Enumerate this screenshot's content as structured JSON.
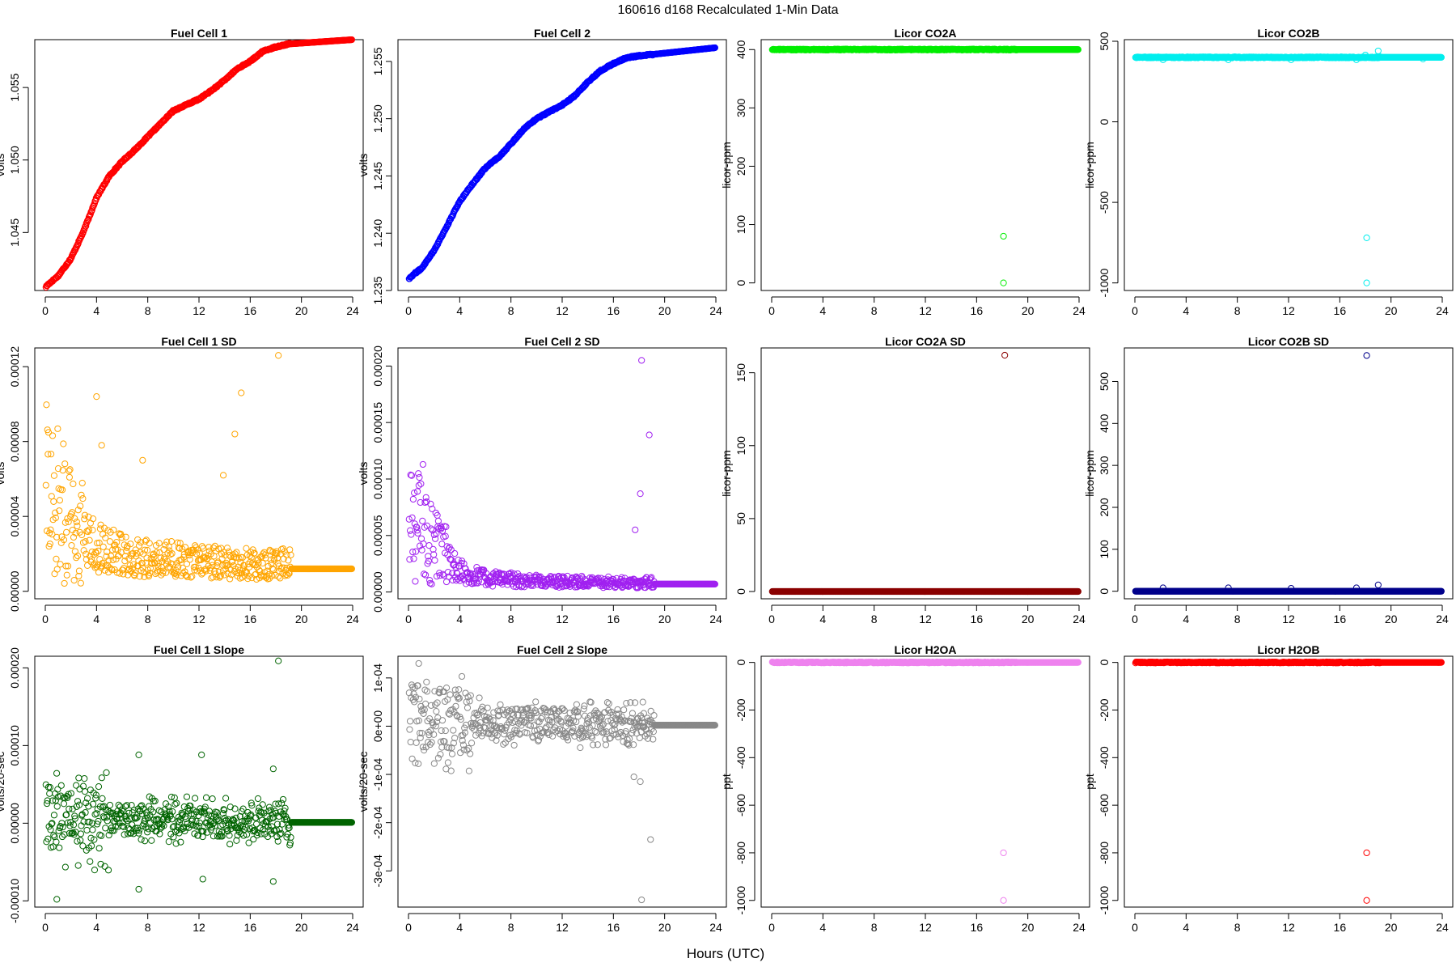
{
  "figure": {
    "title": "160616   d168   Recalculated 1-Min Data",
    "xlabel": "Hours (UTC)"
  },
  "chart_data": [
    {
      "type": "scatter",
      "title": "Fuel Cell 1",
      "xlabel": "",
      "ylabel": "volts",
      "color": "#ff0000",
      "xlim": [
        0,
        24
      ],
      "ylim": [
        1.041,
        1.0583
      ],
      "x_ticks": [
        0,
        4,
        8,
        12,
        16,
        20,
        24
      ],
      "y_ticks": [
        {
          "value": 1.045,
          "label": "1.045"
        },
        {
          "value": 1.05,
          "label": "1.050"
        },
        {
          "value": 1.055,
          "label": "1.055"
        }
      ],
      "trend": [
        [
          0,
          1.0412
        ],
        [
          0.2,
          1.0414
        ],
        [
          1,
          1.042
        ],
        [
          2,
          1.0432
        ],
        [
          3,
          1.0451
        ],
        [
          4,
          1.0474
        ],
        [
          5,
          1.0489
        ],
        [
          6,
          1.0499
        ],
        [
          7,
          1.0507
        ],
        [
          8,
          1.0516
        ],
        [
          9,
          1.0525
        ],
        [
          10,
          1.0534
        ],
        [
          11,
          1.0538
        ],
        [
          12,
          1.0542
        ],
        [
          13,
          1.0548
        ],
        [
          14,
          1.0555
        ],
        [
          15,
          1.0563
        ],
        [
          16,
          1.0568
        ],
        [
          17,
          1.0575
        ],
        [
          18,
          1.0578
        ],
        [
          19,
          1.058
        ],
        [
          24,
          1.0583
        ]
      ],
      "flat_from": 19.2,
      "outliers": []
    },
    {
      "type": "scatter",
      "title": "Fuel Cell 2",
      "xlabel": "",
      "ylabel": "volts",
      "color": "#0000ff",
      "xlim": [
        0,
        24
      ],
      "ylim": [
        1.235,
        1.2569
      ],
      "x_ticks": [
        0,
        4,
        8,
        12,
        16,
        20,
        24
      ],
      "y_ticks": [
        {
          "value": 1.235,
          "label": "1.235"
        },
        {
          "value": 1.24,
          "label": "1.240"
        },
        {
          "value": 1.245,
          "label": "1.245"
        },
        {
          "value": 1.25,
          "label": "1.250"
        },
        {
          "value": 1.255,
          "label": "1.255"
        }
      ],
      "trend": [
        [
          0,
          1.236
        ],
        [
          0.5,
          1.2365
        ],
        [
          1,
          1.2369
        ],
        [
          2,
          1.2385
        ],
        [
          3,
          1.2406
        ],
        [
          4,
          1.2428
        ],
        [
          5,
          1.2443
        ],
        [
          6,
          1.2457
        ],
        [
          7,
          1.2466
        ],
        [
          8,
          1.2478
        ],
        [
          9,
          1.2491
        ],
        [
          10,
          1.25
        ],
        [
          11,
          1.2506
        ],
        [
          12,
          1.2512
        ],
        [
          13,
          1.252
        ],
        [
          14,
          1.2532
        ],
        [
          15,
          1.2542
        ],
        [
          16,
          1.2548
        ],
        [
          17,
          1.2553
        ],
        [
          18,
          1.2555
        ],
        [
          19,
          1.2556
        ],
        [
          24,
          1.2562
        ]
      ],
      "flat_from": 19.2,
      "outliers": []
    },
    {
      "type": "scatter",
      "title": "Licor CO2A",
      "xlabel": "",
      "ylabel": "licor-ppm",
      "color": "#00ee00",
      "xlim": [
        0,
        24
      ],
      "ylim": [
        -13,
        417
      ],
      "x_ticks": [
        0,
        4,
        8,
        12,
        16,
        20,
        24
      ],
      "y_ticks": [
        {
          "value": 0,
          "label": "0"
        },
        {
          "value": 100,
          "label": "100"
        },
        {
          "value": 200,
          "label": "200"
        },
        {
          "value": 300,
          "label": "300"
        },
        {
          "value": 400,
          "label": "400"
        }
      ],
      "trend": [
        [
          0,
          400
        ],
        [
          24,
          400
        ]
      ],
      "flat_from": 19.2,
      "outliers": [
        [
          18.1,
          80
        ],
        [
          18.1,
          0
        ]
      ]
    },
    {
      "type": "scatter",
      "title": "Licor CO2B",
      "xlabel": "",
      "ylabel": "licor-ppm",
      "color": "#00eeee",
      "xlim": [
        0,
        24
      ],
      "ylim": [
        -1047,
        510
      ],
      "x_ticks": [
        0,
        4,
        8,
        12,
        16,
        20,
        24
      ],
      "y_ticks": [
        {
          "value": -1000,
          "label": "-1000"
        },
        {
          "value": -500,
          "label": "-500"
        },
        {
          "value": 0,
          "label": "0"
        },
        {
          "value": 500,
          "label": "500"
        }
      ],
      "trend": [
        [
          0,
          400
        ],
        [
          24,
          400
        ]
      ],
      "flat_from": 19.2,
      "outliers": [
        [
          2.2,
          385
        ],
        [
          7.3,
          385
        ],
        [
          12.2,
          385
        ],
        [
          17.3,
          385
        ],
        [
          18.0,
          415
        ],
        [
          19.0,
          440
        ],
        [
          22.5,
          390
        ],
        [
          18.1,
          -720
        ],
        [
          18.1,
          -1000
        ]
      ]
    },
    {
      "type": "scatter",
      "title": "Fuel Cell 1 SD",
      "xlabel": "",
      "ylabel": "volts",
      "color": "#ffa500",
      "xlim": [
        0,
        24
      ],
      "ylim": [
        -4e-06,
        0.00013
      ],
      "x_ticks": [
        0,
        4,
        8,
        12,
        16,
        20,
        24
      ],
      "y_ticks": [
        {
          "value": 0,
          "label": "0.00000"
        },
        {
          "value": 4e-05,
          "label": "0.00004"
        },
        {
          "value": 8e-05,
          "label": "0.00008"
        },
        {
          "value": 0.00012,
          "label": "0.00012"
        }
      ],
      "trend": [
        [
          0,
          4e-05
        ],
        [
          1,
          3.5e-05
        ],
        [
          2,
          2.5e-05
        ],
        [
          4,
          2e-05
        ],
        [
          6,
          1.6e-05
        ],
        [
          8,
          1.5e-05
        ],
        [
          12,
          1.3e-05
        ],
        [
          16,
          1.2e-05
        ],
        [
          19,
          1.2e-05
        ]
      ],
      "flat_from": 19.2,
      "outliers": [
        [
          4,
          0.000104
        ],
        [
          4.4,
          7.8e-05
        ],
        [
          7.6,
          7e-05
        ],
        [
          13.9,
          6.2e-05
        ],
        [
          14.8,
          8.4e-05
        ],
        [
          15.3,
          0.000106
        ],
        [
          18.2,
          0.000126
        ]
      ]
    },
    {
      "type": "scatter",
      "title": "Fuel Cell 2 SD",
      "xlabel": "",
      "ylabel": "volts",
      "color": "#a020f0",
      "xlim": [
        0,
        24
      ],
      "ylim": [
        -6e-06,
        0.000216
      ],
      "x_ticks": [
        0,
        4,
        8,
        12,
        16,
        20,
        24
      ],
      "y_ticks": [
        {
          "value": 0,
          "label": "0.00000"
        },
        {
          "value": 5e-05,
          "label": "0.00005"
        },
        {
          "value": 0.0001,
          "label": "0.00010"
        },
        {
          "value": 0.00015,
          "label": "0.00015"
        },
        {
          "value": 0.0002,
          "label": "0.00020"
        }
      ],
      "trend": [
        [
          0,
          4e-05
        ],
        [
          1,
          4.5e-05
        ],
        [
          2,
          3e-05
        ],
        [
          4,
          1.5e-05
        ],
        [
          6,
          1e-05
        ],
        [
          10,
          8e-06
        ],
        [
          16,
          7e-06
        ],
        [
          19,
          7e-06
        ]
      ],
      "flat_from": 19.2,
      "outliers": [
        [
          0.7,
          8.9e-05
        ],
        [
          17.7,
          5.5e-05
        ],
        [
          18.1,
          8.7e-05
        ],
        [
          18.2,
          0.000205
        ],
        [
          18.8,
          0.000139
        ]
      ]
    },
    {
      "type": "scatter",
      "title": "Licor CO2A SD",
      "xlabel": "",
      "ylabel": "licor-ppm",
      "color": "#8b0000",
      "xlim": [
        0,
        24
      ],
      "ylim": [
        -5,
        167
      ],
      "x_ticks": [
        0,
        4,
        8,
        12,
        16,
        20,
        24
      ],
      "y_ticks": [
        {
          "value": 0,
          "label": "0"
        },
        {
          "value": 50,
          "label": "50"
        },
        {
          "value": 100,
          "label": "100"
        },
        {
          "value": 150,
          "label": "150"
        }
      ],
      "trend": [
        [
          0,
          0
        ],
        [
          24,
          0
        ]
      ],
      "flat_from": 19.2,
      "outliers": [
        [
          18.2,
          162
        ]
      ]
    },
    {
      "type": "scatter",
      "title": "Licor CO2B SD",
      "xlabel": "",
      "ylabel": "licor-ppm",
      "color": "#00008b",
      "xlim": [
        0,
        24
      ],
      "ylim": [
        -18,
        580
      ],
      "x_ticks": [
        0,
        4,
        8,
        12,
        16,
        20,
        24
      ],
      "y_ticks": [
        {
          "value": 0,
          "label": "0"
        },
        {
          "value": 100,
          "label": "100"
        },
        {
          "value": 200,
          "label": "200"
        },
        {
          "value": 300,
          "label": "300"
        },
        {
          "value": 400,
          "label": "400"
        },
        {
          "value": 500,
          "label": "500"
        }
      ],
      "trend": [
        [
          0,
          0
        ],
        [
          24,
          0
        ]
      ],
      "flat_from": 19.2,
      "outliers": [
        [
          2.2,
          8
        ],
        [
          7.3,
          8
        ],
        [
          12.2,
          7
        ],
        [
          17.3,
          8
        ],
        [
          19.0,
          15
        ],
        [
          18.1,
          562
        ]
      ]
    },
    {
      "type": "scatter",
      "title": "Fuel Cell 1 Slope",
      "xlabel": "",
      "ylabel": "volts/20-sec",
      "color": "#006400",
      "xlim": [
        0,
        24
      ],
      "ylim": [
        -0.000108,
        0.000215
      ],
      "x_ticks": [
        0,
        4,
        8,
        12,
        16,
        20,
        24
      ],
      "y_ticks": [
        {
          "value": -0.0001,
          "label": "-0.00010"
        },
        {
          "value": 0,
          "label": "0.00000"
        },
        {
          "value": 0.0001,
          "label": "0.00010"
        },
        {
          "value": 0.0002,
          "label": "0.00020"
        }
      ],
      "trend": [
        [
          0,
          1e-05
        ],
        [
          4,
          5e-06
        ],
        [
          19,
          1e-06
        ]
      ],
      "flat_from": 19.2,
      "outliers": [
        [
          7.3,
          8.8e-05
        ],
        [
          12.2,
          8.8e-05
        ],
        [
          17.8,
          7e-05
        ],
        [
          18.2,
          0.000209
        ],
        [
          0.9,
          -9.8e-05
        ],
        [
          7.3,
          -8.5e-05
        ],
        [
          12.3,
          -7.2e-05
        ],
        [
          17.8,
          -7.5e-05
        ]
      ]
    },
    {
      "type": "scatter",
      "title": "Fuel Cell 2 Slope",
      "xlabel": "",
      "ylabel": "volts/20-sec",
      "color": "#888888",
      "xlim": [
        0,
        24
      ],
      "ylim": [
        -0.000375,
        0.000145
      ],
      "x_ticks": [
        0,
        4,
        8,
        12,
        16,
        20,
        24
      ],
      "y_ticks": [
        {
          "value": -0.0003,
          "label": "-3e-04"
        },
        {
          "value": -0.0002,
          "label": "-2e-04"
        },
        {
          "value": -0.0001,
          "label": "-1e-04"
        },
        {
          "value": 0,
          "label": "0e+00"
        },
        {
          "value": 0.0001,
          "label": "1e-04"
        }
      ],
      "trend": [
        [
          0,
          2e-05
        ],
        [
          4,
          1e-05
        ],
        [
          19,
          2e-06
        ]
      ],
      "flat_from": 19.2,
      "outliers": [
        [
          0.8,
          0.00013
        ],
        [
          17.6,
          -0.000105
        ],
        [
          18.1,
          -0.000115
        ],
        [
          18.3,
          5e-05
        ],
        [
          18.9,
          -0.000235
        ],
        [
          18.2,
          -0.00036
        ]
      ]
    },
    {
      "type": "scatter",
      "title": "Licor H2OA",
      "xlabel": "",
      "ylabel": "ppt",
      "color": "#ee82ee",
      "xlim": [
        0,
        24
      ],
      "ylim": [
        -1028,
        26
      ],
      "x_ticks": [
        0,
        4,
        8,
        12,
        16,
        20,
        24
      ],
      "y_ticks": [
        {
          "value": -1000,
          "label": "-1000"
        },
        {
          "value": -800,
          "label": "-800"
        },
        {
          "value": -600,
          "label": "-600"
        },
        {
          "value": -400,
          "label": "-400"
        },
        {
          "value": -200,
          "label": "-200"
        },
        {
          "value": 0,
          "label": "0"
        }
      ],
      "trend": [
        [
          0,
          0
        ],
        [
          24,
          0
        ]
      ],
      "flat_from": 19.2,
      "outliers": [
        [
          18.1,
          -800
        ],
        [
          18.1,
          -1000
        ]
      ]
    },
    {
      "type": "scatter",
      "title": "Licor H2OB",
      "xlabel": "",
      "ylabel": "ppt",
      "color": "#ff0000",
      "xlim": [
        0,
        24
      ],
      "ylim": [
        -1028,
        26
      ],
      "x_ticks": [
        0,
        4,
        8,
        12,
        16,
        20,
        24
      ],
      "y_ticks": [
        {
          "value": -1000,
          "label": "-1000"
        },
        {
          "value": -800,
          "label": "-800"
        },
        {
          "value": -600,
          "label": "-600"
        },
        {
          "value": -400,
          "label": "-400"
        },
        {
          "value": -200,
          "label": "-200"
        },
        {
          "value": 0,
          "label": "0"
        }
      ],
      "trend": [
        [
          0,
          0
        ],
        [
          24,
          0
        ]
      ],
      "flat_from": 19.2,
      "outliers": [
        [
          18.1,
          -800
        ],
        [
          18.1,
          -1000
        ]
      ]
    }
  ]
}
